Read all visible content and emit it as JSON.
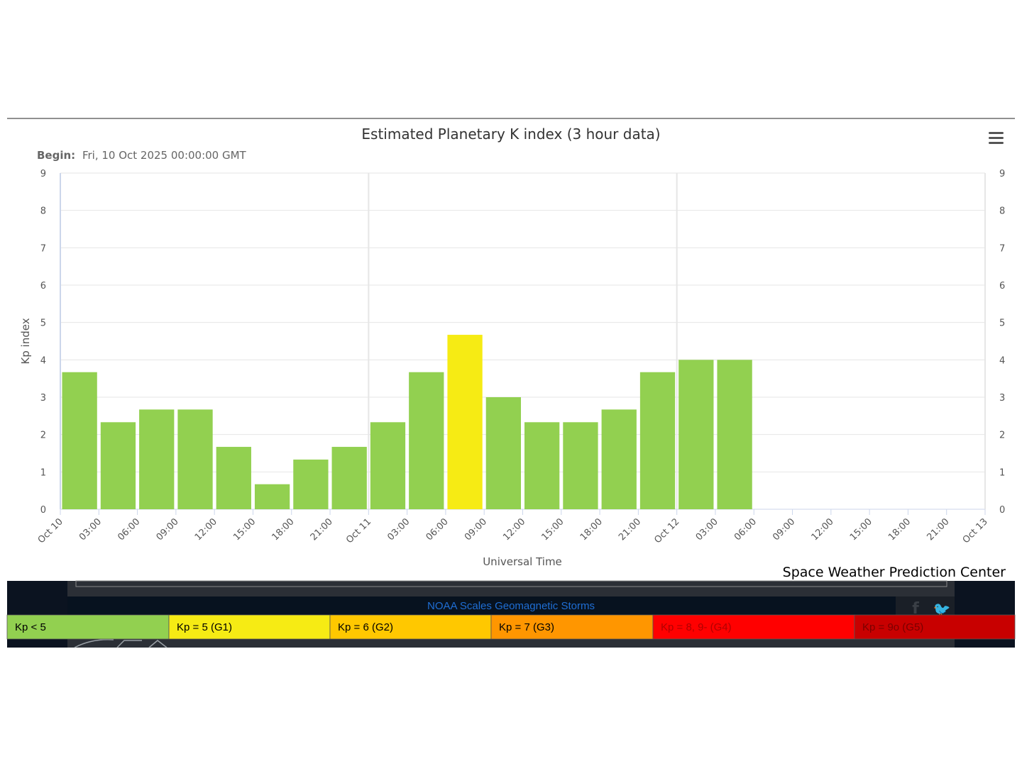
{
  "chart_data": {
    "type": "bar",
    "title": "Estimated Planetary K index (3 hour data)",
    "subtitle_label": "Begin:",
    "subtitle_value": "Fri, 10 Oct 2025 00:00:00 GMT",
    "xlabel": "Universal Time",
    "ylabel": "Kp index",
    "ylim": [
      0,
      9
    ],
    "yticks": [
      "0",
      "1",
      "2",
      "3",
      "4",
      "5",
      "6",
      "7",
      "8",
      "9"
    ],
    "xticks": [
      "Oct 10",
      "03:00",
      "06:00",
      "09:00",
      "12:00",
      "15:00",
      "18:00",
      "21:00",
      "Oct 11",
      "03:00",
      "06:00",
      "09:00",
      "12:00",
      "15:00",
      "18:00",
      "21:00",
      "Oct 12",
      "03:00",
      "06:00",
      "09:00",
      "12:00",
      "15:00",
      "18:00",
      "21:00",
      "Oct 13"
    ],
    "values": [
      3.67,
      2.33,
      2.67,
      2.67,
      1.67,
      0.67,
      1.33,
      1.67,
      2.33,
      3.67,
      4.67,
      3.0,
      2.33,
      2.33,
      2.67,
      3.67,
      4.0,
      4.0
    ],
    "bar_colors": [
      "#92d050",
      "#92d050",
      "#92d050",
      "#92d050",
      "#92d050",
      "#92d050",
      "#92d050",
      "#92d050",
      "#92d050",
      "#92d050",
      "#f6eb14",
      "#92d050",
      "#92d050",
      "#92d050",
      "#92d050",
      "#92d050",
      "#92d050",
      "#92d050"
    ],
    "grid": true,
    "credit": "Space Weather Prediction Center"
  },
  "legend": {
    "items": [
      {
        "label": "Kp < 5",
        "color": "#92d050",
        "text_color": "#000000"
      },
      {
        "label": "Kp = 5 (G1)",
        "color": "#f6eb14",
        "text_color": "#000000"
      },
      {
        "label": "Kp = 6 (G2)",
        "color": "#ffc800",
        "text_color": "#000000"
      },
      {
        "label": "Kp = 7 (G3)",
        "color": "#ff9600",
        "text_color": "#000000"
      },
      {
        "label": "Kp = 8, 9- (G4)",
        "color": "#ff0000",
        "text_color": "#b00000"
      },
      {
        "label": "Kp = 9o (G5)",
        "color": "#c80000",
        "text_color": "#7a0000"
      }
    ]
  },
  "footer": {
    "scales_link": "NOAA Scales Geomagnetic Storms"
  }
}
